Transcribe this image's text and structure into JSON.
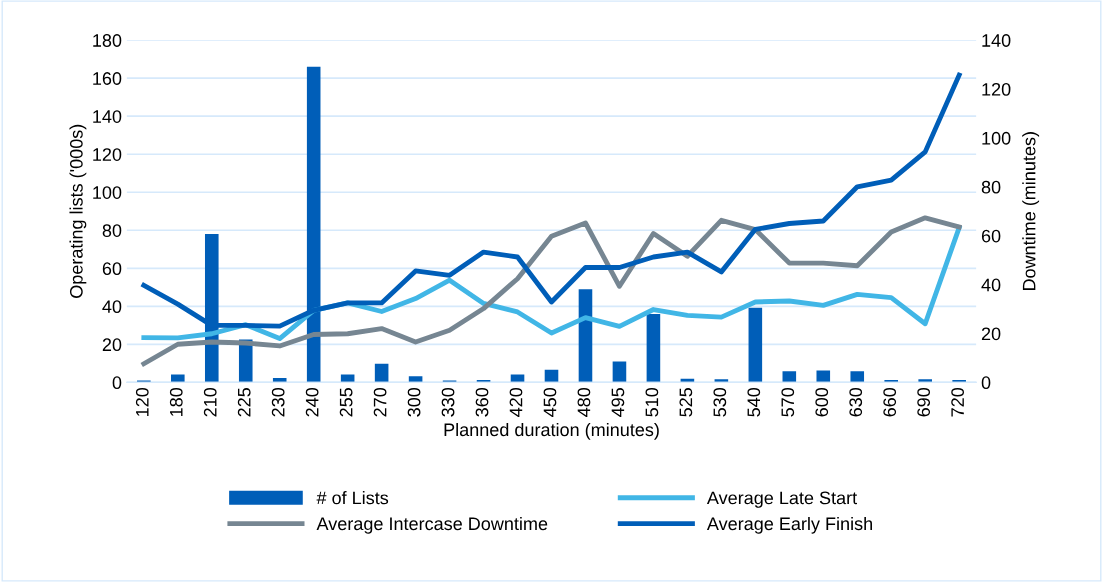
{
  "chart_data": {
    "type": "bar",
    "xlabel": "Planned duration (minutes)",
    "ylabel": "Operating lists ('000s)",
    "y2label": "Downtime (minutes)",
    "categories": [
      "120",
      "180",
      "210",
      "225",
      "230",
      "240",
      "255",
      "270",
      "300",
      "330",
      "360",
      "420",
      "450",
      "480",
      "495",
      "510",
      "525",
      "530",
      "540",
      "570",
      "600",
      "630",
      "660",
      "690",
      "720"
    ],
    "series": [
      {
        "name": "# of Lists",
        "color": "#005eb8",
        "values": [
          1,
          4.2,
          78,
          22.5,
          2.3,
          166,
          4.2,
          9.8,
          3.2,
          1,
          1.2,
          4.2,
          6.7,
          49,
          11,
          36,
          1.9,
          1.6,
          39.3,
          5.8,
          6.3,
          5.8,
          1.2,
          1.6,
          1.2
        ]
      },
      {
        "name": "Average Late Start",
        "type": "line",
        "axis": "y2",
        "color": "#41b6e6",
        "values": [
          18.3,
          18.2,
          19.9,
          23.6,
          17.9,
          29.5,
          32.5,
          29,
          34.3,
          41.8,
          32.3,
          28.8,
          20.2,
          26.5,
          22.9,
          29.8,
          27.4,
          26.7,
          32.9,
          33.3,
          31.5,
          36,
          34.7,
          24,
          63.3
        ]
      },
      {
        "name": "Average Intercase Downtime",
        "type": "line",
        "axis": "y2",
        "color": "#768692",
        "values": [
          7.6,
          15.6,
          16.5,
          16.1,
          14.9,
          19.6,
          19.9,
          22,
          16.5,
          21.3,
          30.2,
          42.4,
          59.8,
          65.2,
          39.3,
          60.9,
          51.6,
          66.3,
          62.5,
          48.8,
          48.8,
          47.7,
          61.5,
          67.3,
          63.6
        ]
      },
      {
        "name": "Average Early Finish",
        "type": "line",
        "axis": "y2",
        "color": "#005eb8",
        "values": [
          39.7,
          32,
          23.3,
          23.3,
          23,
          29.5,
          32.5,
          32.5,
          45.6,
          43.8,
          53.3,
          51.3,
          32.9,
          47,
          47,
          51.3,
          53.3,
          45.2,
          62.6,
          65,
          66,
          80,
          82.7,
          94.3,
          125.7
        ]
      }
    ],
    "ylim": [
      0,
      180
    ],
    "yticks": [
      0,
      20,
      40,
      60,
      80,
      100,
      120,
      140,
      160,
      180
    ],
    "y2lim": [
      0,
      140
    ],
    "y2ticks": [
      0,
      20,
      40,
      60,
      80,
      100,
      120,
      140
    ],
    "grid": "y",
    "legend": "bottom"
  }
}
